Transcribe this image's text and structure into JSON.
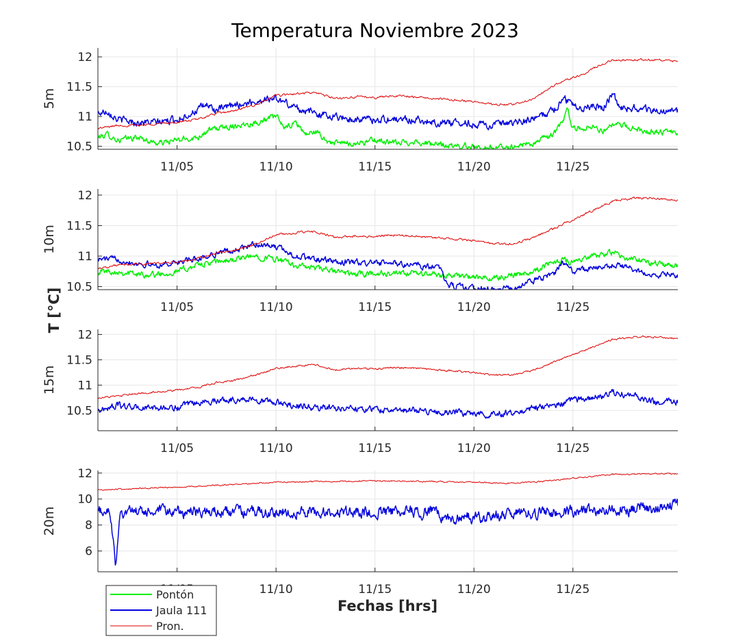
{
  "chart_data": {
    "type": "line",
    "title": "Temperatura Noviembre 2023",
    "xlabel": "Fechas [hrs]",
    "ylabel": "T [°C]",
    "x_domain_days": [
      1,
      30.3
    ],
    "x_ticks": [
      {
        "day": 5,
        "label": "11/05"
      },
      {
        "day": 10,
        "label": "11/10"
      },
      {
        "day": 15,
        "label": "11/15"
      },
      {
        "day": 20,
        "label": "11/20"
      },
      {
        "day": 25,
        "label": "11/25"
      }
    ],
    "grid": true,
    "legend": {
      "placement": "bottom-left",
      "entries": [
        {
          "name": "Pontón",
          "color": "#00ee00"
        },
        {
          "name": "Jaula 111",
          "color": "#0000dd"
        },
        {
          "name": "Pron.",
          "color": "#dd0000"
        }
      ]
    },
    "panels": [
      {
        "label": "5m",
        "ylim": [
          10.45,
          12.15
        ],
        "yticks": [
          10.5,
          11,
          11.5,
          12
        ],
        "ytick_labels": [
          "10.5",
          "11",
          "11.5",
          "12"
        ],
        "series": [
          {
            "name": "Pontón",
            "color": "#00ee00",
            "noise": 0.04,
            "x": [
              1,
              1.5,
              2,
              3,
              4,
              5,
              6,
              6.5,
              7,
              8,
              9,
              9.5,
              10,
              10.5,
              11,
              11.5,
              12,
              12.5,
              13,
              14,
              15,
              16,
              17,
              18,
              19,
              20,
              20.5,
              21,
              22,
              23,
              24,
              24.5,
              24.7,
              25,
              25.5,
              26,
              26.5,
              27,
              27.5,
              28,
              29,
              30.3
            ],
            "y": [
              10.65,
              10.7,
              10.6,
              10.65,
              10.55,
              10.6,
              10.65,
              10.75,
              10.8,
              10.85,
              10.9,
              10.95,
              11.0,
              10.8,
              10.9,
              10.7,
              10.75,
              10.6,
              10.55,
              10.55,
              10.6,
              10.55,
              10.58,
              10.53,
              10.5,
              10.5,
              10.48,
              10.47,
              10.5,
              10.55,
              10.7,
              10.9,
              11.15,
              10.8,
              10.8,
              10.85,
              10.75,
              10.85,
              10.85,
              10.8,
              10.75,
              10.72
            ]
          },
          {
            "name": "Jaula 111",
            "color": "#0000dd",
            "noise": 0.05,
            "x": [
              1,
              1.5,
              2,
              3,
              4,
              5,
              6,
              6.5,
              7,
              8,
              9,
              9.5,
              10,
              11,
              12,
              13,
              14,
              15,
              16,
              17,
              18,
              19,
              20,
              21,
              22,
              23,
              24,
              24.5,
              25,
              25.5,
              26,
              26.5,
              27,
              27.5,
              28,
              29,
              30.3
            ],
            "y": [
              11.05,
              11.1,
              10.95,
              10.9,
              10.9,
              10.95,
              11.1,
              11.2,
              11.1,
              11.2,
              11.25,
              11.3,
              11.3,
              11.15,
              11.05,
              11.0,
              10.95,
              10.95,
              10.95,
              10.95,
              10.9,
              10.9,
              10.88,
              10.85,
              10.88,
              10.95,
              11.1,
              11.3,
              11.2,
              11.15,
              11.2,
              11.15,
              11.35,
              11.15,
              11.15,
              11.1,
              11.08
            ]
          },
          {
            "name": "Pron.",
            "color": "#dd0000",
            "noise": 0.015,
            "x": [
              1,
              2,
              3,
              4,
              5,
              6,
              7,
              8,
              9,
              10,
              11,
              12,
              13,
              14,
              15,
              16,
              17,
              18,
              19,
              20,
              21,
              22,
              23,
              24,
              24.5,
              25,
              25.5,
              26,
              27,
              28,
              29,
              30.3
            ],
            "y": [
              10.8,
              10.85,
              10.85,
              10.88,
              10.9,
              10.95,
              11.05,
              11.1,
              11.2,
              11.35,
              11.38,
              11.4,
              11.3,
              11.33,
              11.32,
              11.35,
              11.33,
              11.3,
              11.28,
              11.25,
              11.2,
              11.2,
              11.3,
              11.5,
              11.6,
              11.65,
              11.7,
              11.8,
              11.95,
              11.95,
              11.95,
              11.92
            ]
          }
        ]
      },
      {
        "label": "10m",
        "ylim": [
          10.45,
          12.1
        ],
        "yticks": [
          10.5,
          11,
          11.5,
          12
        ],
        "ytick_labels": [
          "10.5",
          "11",
          "11.5",
          "12"
        ],
        "series": [
          {
            "name": "Pontón",
            "color": "#00ee00",
            "noise": 0.04,
            "x": [
              1,
              2,
              3,
              4,
              5,
              6,
              7,
              8,
              9,
              10,
              11,
              12,
              13,
              14,
              15,
              16,
              17,
              18,
              19,
              20,
              21,
              22,
              23,
              24,
              24.5,
              25,
              26,
              27,
              28,
              29,
              30.3
            ],
            "y": [
              10.75,
              10.75,
              10.7,
              10.7,
              10.75,
              10.85,
              10.9,
              10.95,
              11.0,
              10.95,
              10.85,
              10.8,
              10.75,
              10.7,
              10.72,
              10.7,
              10.72,
              10.7,
              10.68,
              10.65,
              10.63,
              10.7,
              10.75,
              10.9,
              10.95,
              10.9,
              11.0,
              11.05,
              10.95,
              10.88,
              10.85
            ]
          },
          {
            "name": "Jaula 111",
            "color": "#0000dd",
            "noise": 0.04,
            "x": [
              1,
              2,
              3,
              4,
              5,
              6,
              7,
              8,
              9,
              10,
              11,
              12,
              13,
              14,
              15,
              16,
              17,
              18,
              18.4,
              18.5,
              19,
              20,
              21,
              22,
              23,
              24,
              24.5,
              25,
              26,
              27,
              28,
              29,
              30.3
            ],
            "y": [
              10.95,
              10.95,
              10.88,
              10.85,
              10.9,
              10.95,
              11.05,
              11.1,
              11.2,
              11.15,
              11.0,
              10.95,
              10.9,
              10.9,
              10.88,
              10.88,
              10.85,
              10.82,
              10.8,
              10.55,
              10.5,
              10.48,
              10.45,
              10.47,
              10.6,
              10.7,
              10.9,
              10.75,
              10.8,
              10.85,
              10.8,
              10.7,
              10.68
            ]
          },
          {
            "name": "Pron.",
            "color": "#dd0000",
            "noise": 0.015,
            "x": [
              1,
              2,
              3,
              4,
              5,
              6,
              7,
              8,
              9,
              10,
              11,
              12,
              13,
              14,
              15,
              16,
              17,
              18,
              19,
              20,
              21,
              22,
              23,
              24,
              25,
              26,
              27,
              28,
              29,
              30.3
            ],
            "y": [
              10.8,
              10.85,
              10.87,
              10.88,
              10.9,
              10.95,
              11.05,
              11.1,
              11.2,
              11.35,
              11.38,
              11.4,
              11.3,
              11.33,
              11.32,
              11.35,
              11.33,
              11.3,
              11.28,
              11.25,
              11.2,
              11.2,
              11.3,
              11.45,
              11.6,
              11.75,
              11.9,
              11.95,
              11.95,
              11.92
            ]
          }
        ]
      },
      {
        "label": "15m",
        "ylim": [
          10.1,
          12.1
        ],
        "yticks": [
          10.5,
          11,
          11.5,
          12
        ],
        "ytick_labels": [
          "10.5",
          "11",
          "11.5",
          "12"
        ],
        "series": [
          {
            "name": "Jaula 111",
            "color": "#0000dd",
            "noise": 0.05,
            "x": [
              1,
              2,
              3,
              4,
              5,
              6,
              7,
              8,
              9,
              10,
              11,
              12,
              13,
              14,
              15,
              16,
              17,
              18,
              18.5,
              19,
              20,
              21,
              22,
              23,
              24,
              25,
              26,
              27,
              28,
              29,
              30.3
            ],
            "y": [
              10.5,
              10.6,
              10.55,
              10.55,
              10.55,
              10.65,
              10.7,
              10.72,
              10.72,
              10.65,
              10.6,
              10.55,
              10.55,
              10.55,
              10.52,
              10.5,
              10.5,
              10.48,
              10.47,
              10.45,
              10.45,
              10.43,
              10.45,
              10.55,
              10.6,
              10.7,
              10.75,
              10.85,
              10.8,
              10.68,
              10.66
            ]
          },
          {
            "name": "Pron.",
            "color": "#dd0000",
            "noise": 0.015,
            "x": [
              1,
              2,
              3,
              4,
              5,
              6,
              7,
              8,
              9,
              10,
              11,
              12,
              13,
              14,
              15,
              16,
              17,
              18,
              19,
              20,
              21,
              22,
              23,
              24,
              25,
              26,
              27,
              28,
              29,
              30.3
            ],
            "y": [
              10.75,
              10.78,
              10.83,
              10.87,
              10.9,
              10.95,
              11.05,
              11.1,
              11.2,
              11.33,
              11.38,
              11.4,
              11.3,
              11.33,
              11.32,
              11.35,
              11.33,
              11.3,
              11.28,
              11.25,
              11.2,
              11.2,
              11.3,
              11.45,
              11.6,
              11.75,
              11.9,
              11.95,
              11.95,
              11.92
            ]
          }
        ]
      },
      {
        "label": "20m",
        "ylim": [
          4.4,
          12.2
        ],
        "yticks": [
          6,
          8,
          10,
          12
        ],
        "ytick_labels": [
          "6",
          "8",
          "10",
          "12"
        ],
        "series": [
          {
            "name": "Jaula 111",
            "color": "#0000dd",
            "noise": 0.35,
            "x": [
              1,
              1.5,
              1.7,
              1.9,
              2.1,
              2.5,
              5,
              10,
              15,
              18,
              18.5,
              20,
              22,
              25,
              27,
              29,
              30.3
            ],
            "y": [
              9.0,
              9.2,
              7.8,
              4.6,
              9.0,
              9.0,
              9.0,
              9.0,
              9.0,
              9.0,
              8.6,
              8.6,
              8.8,
              9.1,
              9.1,
              9.3,
              9.5
            ]
          },
          {
            "name": "Pron.",
            "color": "#dd0000",
            "noise": 0.04,
            "x": [
              1,
              5,
              10,
              15,
              20,
              21.5,
              23,
              25,
              27,
              30.3
            ],
            "y": [
              10.7,
              10.9,
              11.3,
              11.4,
              11.3,
              11.2,
              11.3,
              11.6,
              11.9,
              11.95
            ]
          }
        ]
      }
    ]
  }
}
